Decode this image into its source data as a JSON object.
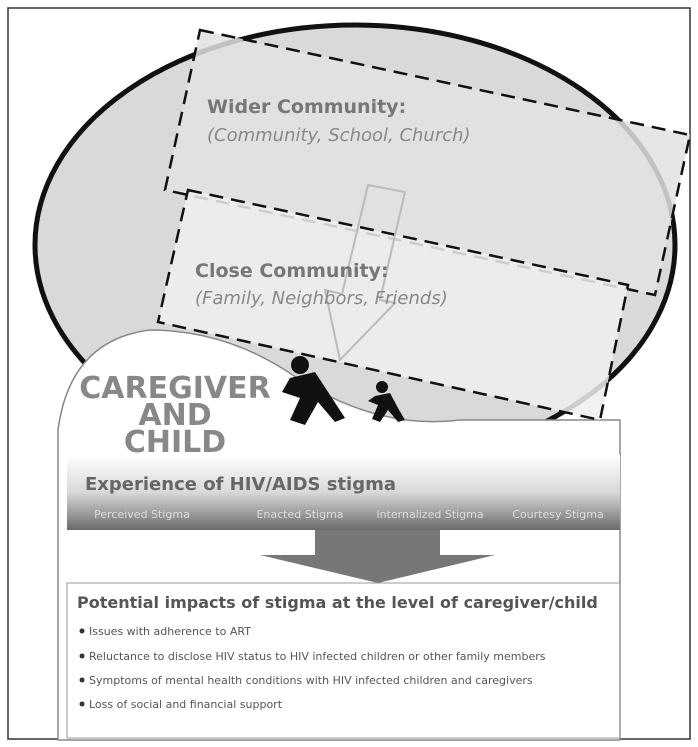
{
  "wider": {
    "title": "Wider Community:",
    "subtitle": "(Community, School, Church)"
  },
  "close": {
    "title": "Close Community:",
    "subtitle": "(Family, Neighbors, Friends)"
  },
  "center": {
    "lines": [
      "CAREGIVER",
      "AND",
      "CHILD"
    ]
  },
  "experience": {
    "title": "Experience of HIV/AIDS stigma",
    "types": [
      "Perceived Stigma",
      "Enacted Stigma",
      "Internalized Stigma",
      "Courtesy Stigma"
    ]
  },
  "impacts": {
    "title": "Potential impacts of stigma at the level of caregiver/child",
    "items": [
      "Issues with adherence to ART",
      "Reluctance to disclose HIV status to HIV infected children or other family members",
      "Symptoms of mental health conditions with HIV infected children and caregivers",
      "Loss of social and financial support"
    ]
  }
}
